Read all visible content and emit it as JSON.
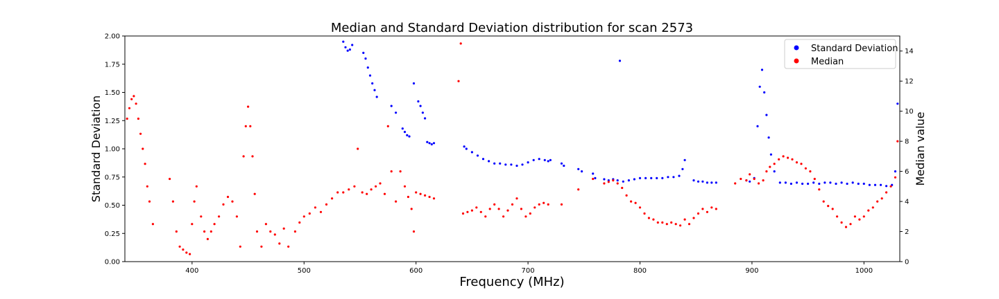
{
  "chart_data": {
    "type": "scatter",
    "title": "Median and Standard Deviation distribution for scan 2573",
    "xlabel": "Frequency (MHz)",
    "ylabel": "Standard Deviation",
    "y2label": "Median value",
    "xlim": [
      340,
      1032
    ],
    "ylim": [
      0,
      2.0
    ],
    "y2lim": [
      0,
      15
    ],
    "x_ticks": [
      "400",
      "500",
      "600",
      "700",
      "800",
      "900",
      "1000"
    ],
    "y_ticks": [
      "0.00",
      "0.25",
      "0.50",
      "0.75",
      "1.00",
      "1.25",
      "1.50",
      "1.75",
      "2.00"
    ],
    "y2_ticks": [
      "0",
      "2",
      "4",
      "6",
      "8",
      "10",
      "12",
      "14"
    ],
    "grid": false,
    "legend_position": "top-right",
    "series": [
      {
        "name": "Standard Deviation",
        "axis": "left",
        "color": "#0000ff",
        "points": [
          [
            535,
            1.95
          ],
          [
            537,
            1.9
          ],
          [
            539,
            1.87
          ],
          [
            541,
            1.88
          ],
          [
            543,
            1.92
          ],
          [
            553,
            1.85
          ],
          [
            555,
            1.8
          ],
          [
            557,
            1.72
          ],
          [
            559,
            1.65
          ],
          [
            561,
            1.58
          ],
          [
            563,
            1.52
          ],
          [
            565,
            1.46
          ],
          [
            578,
            1.38
          ],
          [
            582,
            1.32
          ],
          [
            588,
            1.18
          ],
          [
            590,
            1.15
          ],
          [
            592,
            1.12
          ],
          [
            594,
            1.11
          ],
          [
            598,
            1.58
          ],
          [
            602,
            1.42
          ],
          [
            604,
            1.38
          ],
          [
            606,
            1.32
          ],
          [
            608,
            1.27
          ],
          [
            610,
            1.06
          ],
          [
            612,
            1.05
          ],
          [
            614,
            1.04
          ],
          [
            616,
            1.05
          ],
          [
            643,
            1.02
          ],
          [
            645,
            1.0
          ],
          [
            650,
            0.97
          ],
          [
            655,
            0.94
          ],
          [
            660,
            0.91
          ],
          [
            665,
            0.89
          ],
          [
            670,
            0.87
          ],
          [
            675,
            0.87
          ],
          [
            680,
            0.86
          ],
          [
            685,
            0.86
          ],
          [
            690,
            0.85
          ],
          [
            695,
            0.86
          ],
          [
            700,
            0.88
          ],
          [
            705,
            0.9
          ],
          [
            710,
            0.91
          ],
          [
            715,
            0.9
          ],
          [
            718,
            0.89
          ],
          [
            720,
            0.9
          ],
          [
            730,
            0.87
          ],
          [
            732,
            0.85
          ],
          [
            745,
            0.82
          ],
          [
            748,
            0.8
          ],
          [
            758,
            0.78
          ],
          [
            760,
            0.74
          ],
          [
            768,
            0.73
          ],
          [
            772,
            0.72
          ],
          [
            776,
            0.73
          ],
          [
            780,
            0.72
          ],
          [
            782,
            1.78
          ],
          [
            785,
            0.71
          ],
          [
            790,
            0.72
          ],
          [
            795,
            0.73
          ],
          [
            800,
            0.74
          ],
          [
            805,
            0.74
          ],
          [
            810,
            0.74
          ],
          [
            815,
            0.74
          ],
          [
            820,
            0.74
          ],
          [
            825,
            0.75
          ],
          [
            830,
            0.75
          ],
          [
            835,
            0.76
          ],
          [
            838,
            0.82
          ],
          [
            840,
            0.9
          ],
          [
            848,
            0.72
          ],
          [
            852,
            0.71
          ],
          [
            856,
            0.71
          ],
          [
            860,
            0.7
          ],
          [
            864,
            0.7
          ],
          [
            868,
            0.7
          ],
          [
            895,
            0.72
          ],
          [
            898,
            0.71
          ],
          [
            902,
            0.74
          ],
          [
            905,
            1.2
          ],
          [
            907,
            1.55
          ],
          [
            909,
            1.7
          ],
          [
            911,
            1.5
          ],
          [
            913,
            1.3
          ],
          [
            915,
            1.1
          ],
          [
            917,
            0.95
          ],
          [
            920,
            0.8
          ],
          [
            925,
            0.7
          ],
          [
            930,
            0.7
          ],
          [
            935,
            0.69
          ],
          [
            940,
            0.7
          ],
          [
            945,
            0.69
          ],
          [
            950,
            0.69
          ],
          [
            955,
            0.7
          ],
          [
            960,
            0.69
          ],
          [
            965,
            0.7
          ],
          [
            970,
            0.7
          ],
          [
            975,
            0.69
          ],
          [
            980,
            0.7
          ],
          [
            985,
            0.69
          ],
          [
            990,
            0.7
          ],
          [
            995,
            0.69
          ],
          [
            1000,
            0.69
          ],
          [
            1005,
            0.68
          ],
          [
            1010,
            0.68
          ],
          [
            1015,
            0.68
          ],
          [
            1020,
            0.67
          ],
          [
            1025,
            0.68
          ],
          [
            1028,
            0.8
          ],
          [
            1030,
            1.4
          ]
        ]
      },
      {
        "name": "Median",
        "axis": "right",
        "color": "#ff0000",
        "points": [
          [
            342,
            9.5
          ],
          [
            344,
            10.2
          ],
          [
            346,
            10.8
          ],
          [
            348,
            11.0
          ],
          [
            350,
            10.5
          ],
          [
            352,
            9.5
          ],
          [
            354,
            8.5
          ],
          [
            356,
            7.5
          ],
          [
            358,
            6.5
          ],
          [
            360,
            5.0
          ],
          [
            362,
            4.0
          ],
          [
            365,
            2.5
          ],
          [
            380,
            5.5
          ],
          [
            383,
            4.0
          ],
          [
            386,
            2.0
          ],
          [
            389,
            1.0
          ],
          [
            392,
            0.8
          ],
          [
            395,
            0.6
          ],
          [
            398,
            0.5
          ],
          [
            400,
            2.5
          ],
          [
            402,
            4.0
          ],
          [
            404,
            5.0
          ],
          [
            408,
            3.0
          ],
          [
            411,
            2.0
          ],
          [
            414,
            1.5
          ],
          [
            417,
            2.0
          ],
          [
            420,
            2.5
          ],
          [
            424,
            3.0
          ],
          [
            428,
            3.8
          ],
          [
            432,
            4.3
          ],
          [
            436,
            4.0
          ],
          [
            440,
            3.0
          ],
          [
            443,
            1.0
          ],
          [
            446,
            7.0
          ],
          [
            448,
            9.0
          ],
          [
            450,
            10.3
          ],
          [
            452,
            9.0
          ],
          [
            454,
            7.0
          ],
          [
            456,
            4.5
          ],
          [
            458,
            2.0
          ],
          [
            462,
            1.0
          ],
          [
            466,
            2.5
          ],
          [
            470,
            2.0
          ],
          [
            474,
            1.8
          ],
          [
            478,
            1.2
          ],
          [
            482,
            2.2
          ],
          [
            486,
            1.0
          ],
          [
            492,
            2.0
          ],
          [
            496,
            2.6
          ],
          [
            500,
            3.0
          ],
          [
            505,
            3.2
          ],
          [
            510,
            3.6
          ],
          [
            515,
            3.3
          ],
          [
            520,
            3.8
          ],
          [
            525,
            4.2
          ],
          [
            530,
            4.6
          ],
          [
            535,
            4.6
          ],
          [
            540,
            4.8
          ],
          [
            545,
            5.0
          ],
          [
            548,
            7.5
          ],
          [
            552,
            4.6
          ],
          [
            556,
            4.5
          ],
          [
            560,
            4.8
          ],
          [
            564,
            5.0
          ],
          [
            568,
            5.2
          ],
          [
            572,
            4.5
          ],
          [
            575,
            9.0
          ],
          [
            578,
            6.0
          ],
          [
            582,
            4.0
          ],
          [
            586,
            6.0
          ],
          [
            590,
            5.0
          ],
          [
            593,
            4.3
          ],
          [
            596,
            3.5
          ],
          [
            598,
            2.0
          ],
          [
            600,
            4.6
          ],
          [
            604,
            4.5
          ],
          [
            608,
            4.4
          ],
          [
            612,
            4.3
          ],
          [
            616,
            4.2
          ],
          [
            638,
            12.0
          ],
          [
            640,
            14.5
          ],
          [
            642,
            3.2
          ],
          [
            646,
            3.3
          ],
          [
            650,
            3.4
          ],
          [
            654,
            3.6
          ],
          [
            658,
            3.3
          ],
          [
            662,
            3.0
          ],
          [
            666,
            3.5
          ],
          [
            670,
            3.8
          ],
          [
            674,
            3.5
          ],
          [
            678,
            3.0
          ],
          [
            682,
            3.4
          ],
          [
            686,
            3.8
          ],
          [
            690,
            4.2
          ],
          [
            694,
            3.5
          ],
          [
            698,
            3.0
          ],
          [
            702,
            3.2
          ],
          [
            706,
            3.6
          ],
          [
            710,
            3.8
          ],
          [
            714,
            3.9
          ],
          [
            718,
            3.8
          ],
          [
            730,
            3.8
          ],
          [
            745,
            4.8
          ],
          [
            758,
            5.5
          ],
          [
            768,
            5.2
          ],
          [
            772,
            5.3
          ],
          [
            776,
            5.4
          ],
          [
            780,
            5.2
          ],
          [
            784,
            4.9
          ],
          [
            788,
            4.4
          ],
          [
            792,
            4.0
          ],
          [
            796,
            3.9
          ],
          [
            800,
            3.6
          ],
          [
            804,
            3.2
          ],
          [
            808,
            2.9
          ],
          [
            812,
            2.8
          ],
          [
            816,
            2.6
          ],
          [
            820,
            2.6
          ],
          [
            824,
            2.5
          ],
          [
            828,
            2.6
          ],
          [
            832,
            2.5
          ],
          [
            836,
            2.4
          ],
          [
            840,
            2.8
          ],
          [
            844,
            2.5
          ],
          [
            848,
            2.9
          ],
          [
            852,
            3.2
          ],
          [
            856,
            3.5
          ],
          [
            860,
            3.3
          ],
          [
            864,
            3.6
          ],
          [
            868,
            3.5
          ],
          [
            885,
            5.2
          ],
          [
            890,
            5.5
          ],
          [
            895,
            5.4
          ],
          [
            898,
            5.8
          ],
          [
            902,
            5.5
          ],
          [
            906,
            5.2
          ],
          [
            910,
            5.4
          ],
          [
            913,
            6.0
          ],
          [
            916,
            6.3
          ],
          [
            920,
            6.5
          ],
          [
            924,
            6.8
          ],
          [
            928,
            7.0
          ],
          [
            932,
            6.9
          ],
          [
            936,
            6.8
          ],
          [
            940,
            6.6
          ],
          [
            944,
            6.5
          ],
          [
            948,
            6.2
          ],
          [
            952,
            6.0
          ],
          [
            956,
            5.5
          ],
          [
            960,
            4.8
          ],
          [
            964,
            4.0
          ],
          [
            968,
            3.7
          ],
          [
            972,
            3.5
          ],
          [
            976,
            3.0
          ],
          [
            980,
            2.6
          ],
          [
            984,
            2.3
          ],
          [
            988,
            2.5
          ],
          [
            992,
            3.0
          ],
          [
            996,
            2.8
          ],
          [
            1000,
            3.0
          ],
          [
            1004,
            3.4
          ],
          [
            1008,
            3.6
          ],
          [
            1012,
            4.0
          ],
          [
            1016,
            4.2
          ],
          [
            1020,
            4.6
          ],
          [
            1024,
            5.0
          ],
          [
            1028,
            5.6
          ],
          [
            1030,
            8.0
          ]
        ]
      }
    ]
  }
}
